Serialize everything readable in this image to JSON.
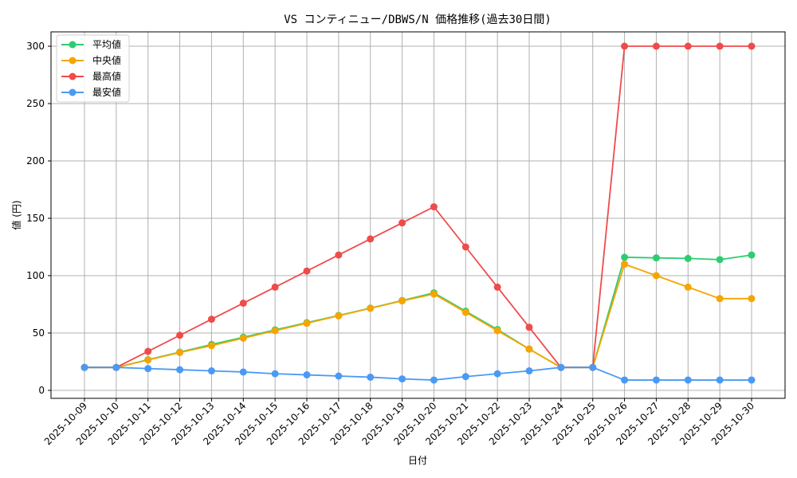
{
  "chart_data": {
    "type": "line",
    "title": "VS コンティニュー/DBWS/N 価格推移(過去30日間)",
    "xlabel": "日付",
    "ylabel": "値 (円)",
    "ylim": [
      -8,
      315
    ],
    "yticks": [
      0,
      50,
      100,
      150,
      200,
      250,
      300
    ],
    "grid": true,
    "legend_position": "upper left",
    "categories": [
      "2025-10-09",
      "2025-10-10",
      "2025-10-11",
      "2025-10-12",
      "2025-10-13",
      "2025-10-14",
      "2025-10-15",
      "2025-10-16",
      "2025-10-17",
      "2025-10-18",
      "2025-10-19",
      "2025-10-20",
      "2025-10-21",
      "2025-10-22",
      "2025-10-23",
      "2025-10-24",
      "2025-10-25",
      "2025-10-26",
      "2025-10-27",
      "2025-10-28",
      "2025-10-29",
      "2025-10-30"
    ],
    "series": [
      {
        "name": "平均値",
        "color": "#2ecc71",
        "values": [
          20,
          20,
          26.7,
          33.3,
          40,
          46.3,
          52.7,
          59,
          65.3,
          71.7,
          78.3,
          85,
          69,
          53,
          36,
          20,
          20,
          116,
          115.5,
          115,
          114,
          118
        ]
      },
      {
        "name": "中央値",
        "color": "#f5a500",
        "values": [
          20,
          20,
          26.5,
          33,
          39,
          45.5,
          52,
          58.5,
          65,
          71.5,
          78,
          84,
          68,
          52,
          36,
          20,
          20,
          110,
          100,
          90,
          80,
          80
        ]
      },
      {
        "name": "最高値",
        "color": "#f04b4b",
        "values": [
          20,
          20,
          34,
          48,
          62,
          76,
          90,
          104,
          118,
          132,
          146,
          160,
          125,
          90,
          55,
          20,
          20,
          300,
          300,
          300,
          300,
          300
        ]
      },
      {
        "name": "最安値",
        "color": "#4a9af5",
        "values": [
          20,
          20,
          19,
          18,
          17,
          16,
          14.5,
          13.5,
          12.5,
          11.5,
          10,
          9,
          12,
          14.5,
          17,
          20,
          20,
          9,
          9,
          9,
          9,
          9
        ]
      }
    ]
  }
}
